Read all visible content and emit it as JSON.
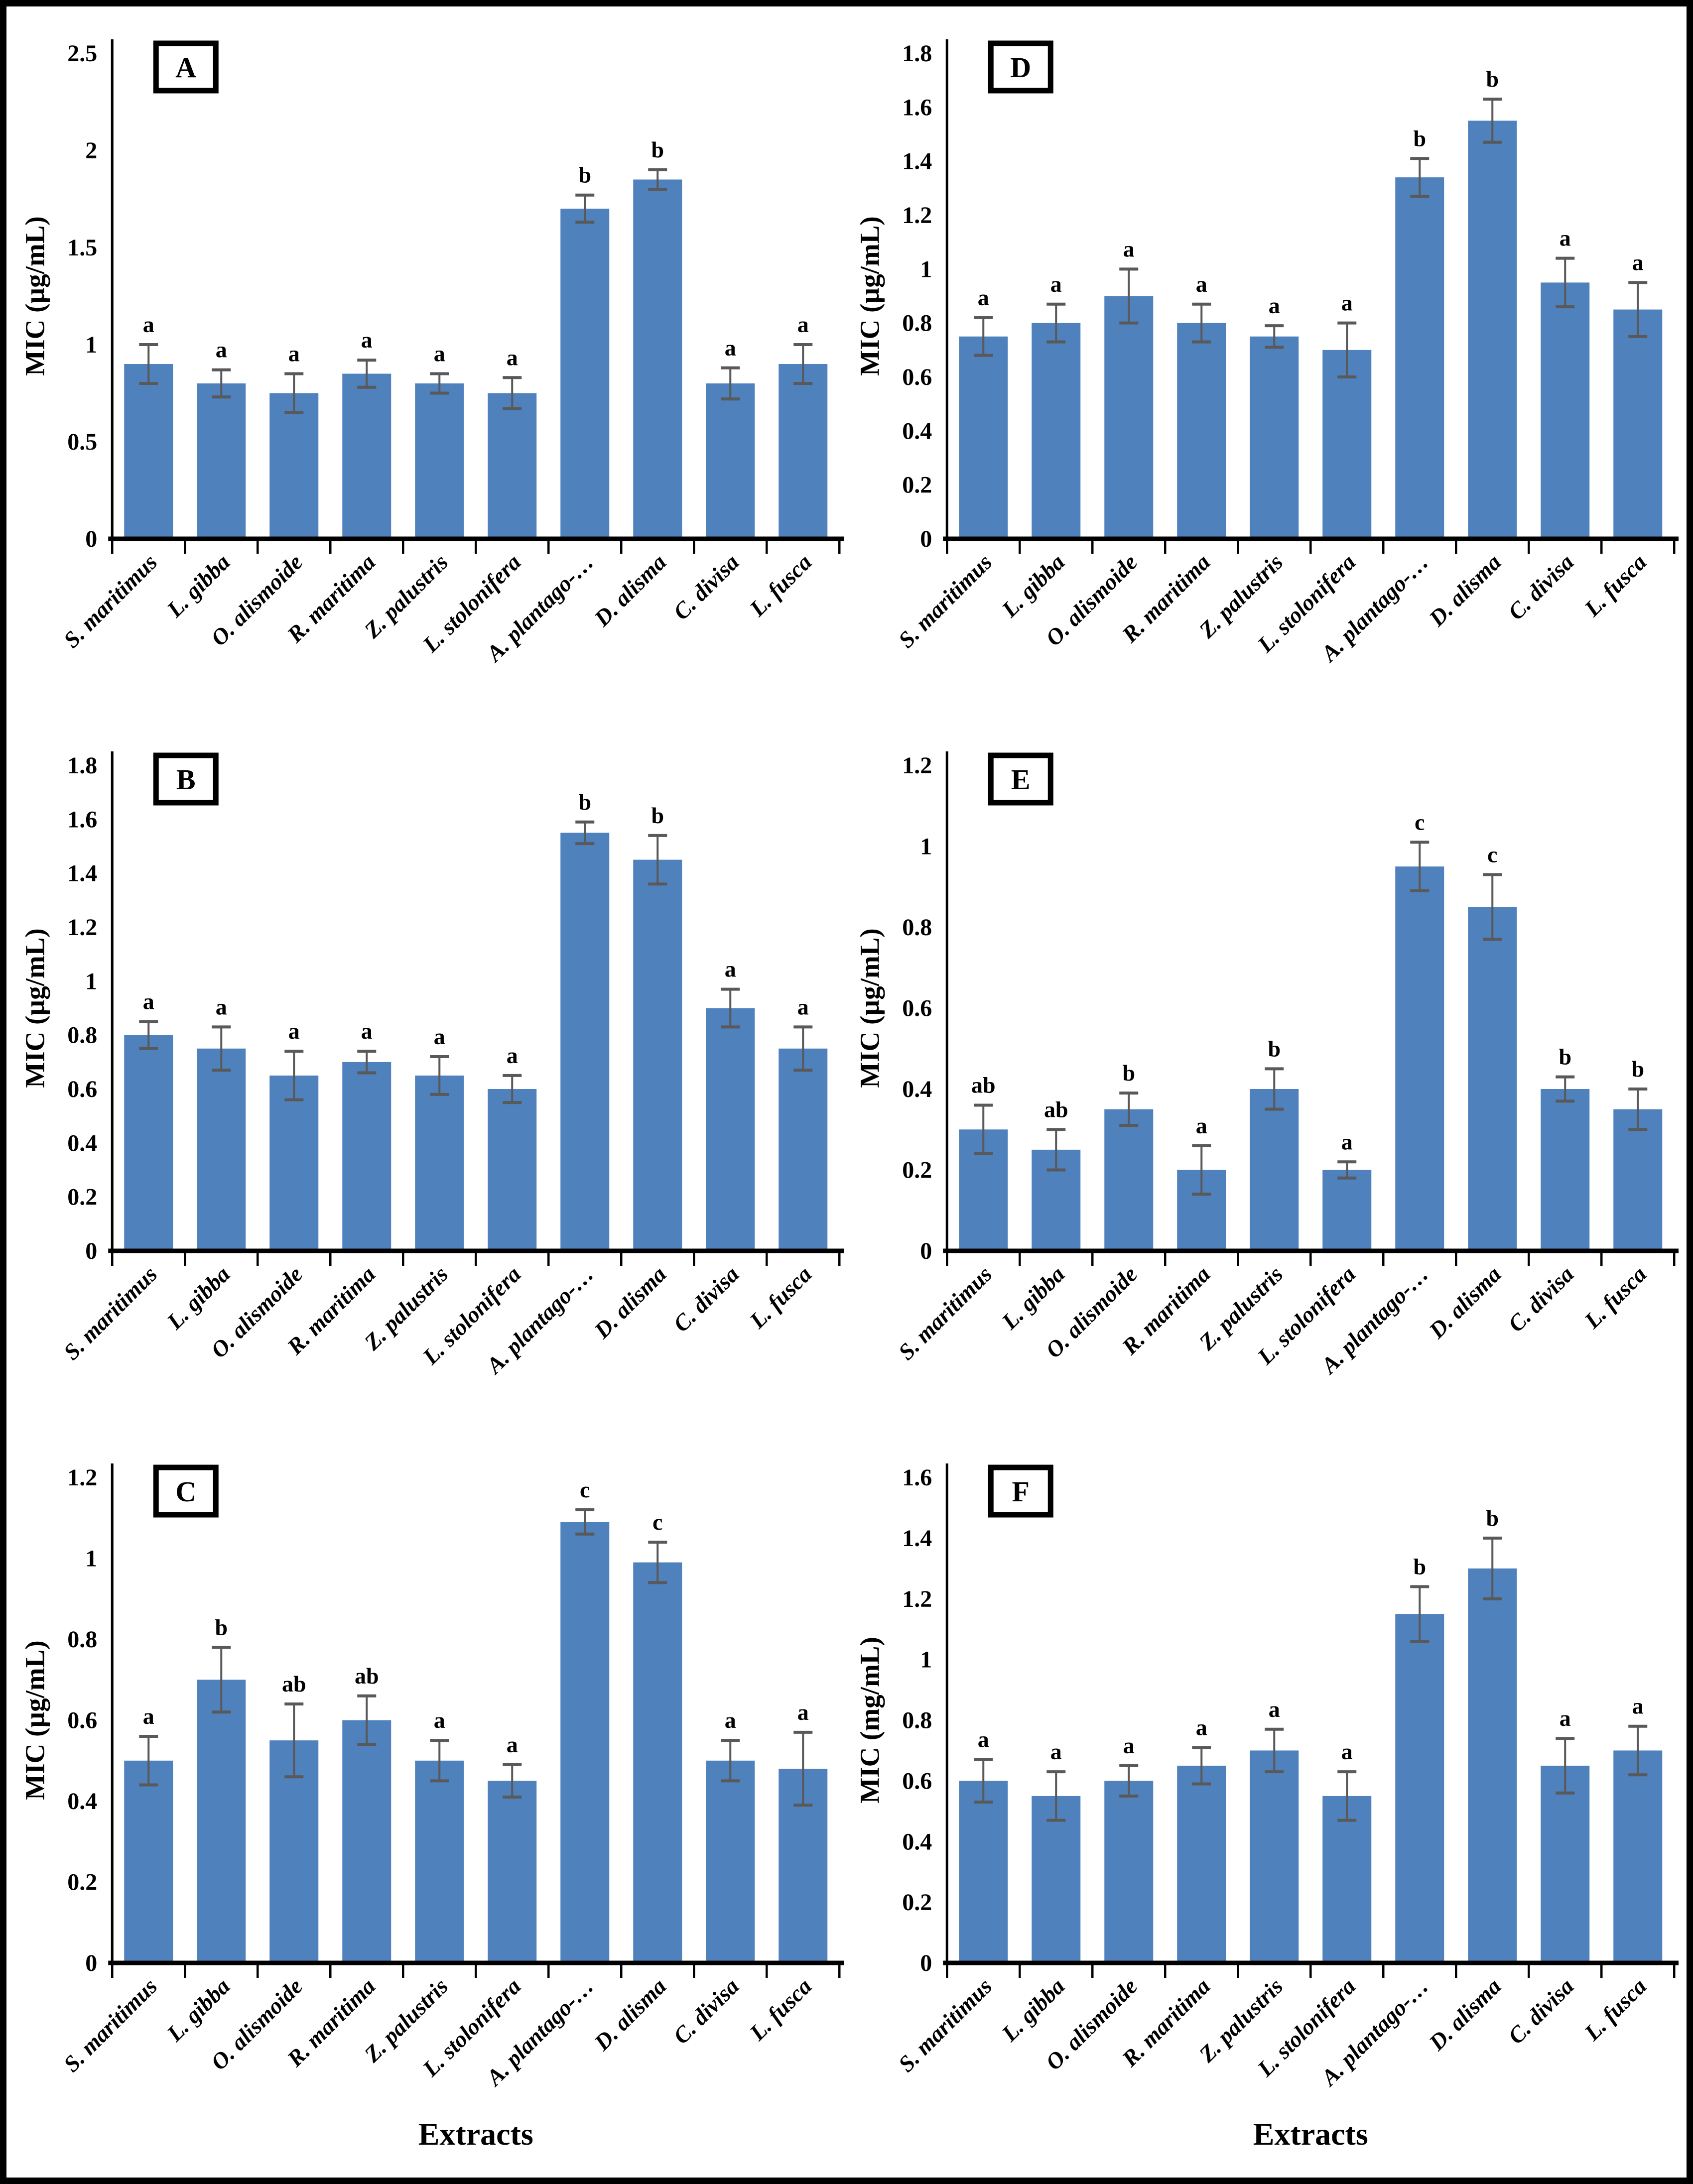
{
  "figure": {
    "bar_color": "#4F81BD",
    "error_color": "#595959",
    "axis_color": "#000000",
    "background": "#ffffff",
    "grid_layout": [
      [
        "A",
        "D"
      ],
      [
        "B",
        "E"
      ],
      [
        "C",
        "F"
      ]
    ],
    "x_axis_title": "Extracts",
    "categories": [
      "S. maritimus",
      "L. gibba",
      "O. alismoide",
      "R. maritima",
      "Z. palustris",
      "L. stolonifera",
      "A. plantago-…",
      "D. alisma",
      "C. divisa",
      "L. fusca"
    ]
  },
  "chart_data": [
    {
      "panel_label": "A",
      "type": "bar",
      "ylabel": "MIC (µg/mL)",
      "xlabel": "",
      "ylim": [
        0,
        2.5
      ],
      "ytick_step": 0.5,
      "grid": false,
      "categories": [
        "S. maritimus",
        "L. gibba",
        "O. alismoide",
        "R. maritima",
        "Z. palustris",
        "L. stolonifera",
        "A. plantago-…",
        "D. alisma",
        "C. divisa",
        "L. fusca"
      ],
      "values": [
        0.9,
        0.8,
        0.75,
        0.85,
        0.8,
        0.75,
        1.7,
        1.85,
        0.8,
        0.9
      ],
      "errors": [
        0.1,
        0.07,
        0.1,
        0.07,
        0.05,
        0.08,
        0.07,
        0.05,
        0.08,
        0.1
      ],
      "sig_letters": [
        "a",
        "a",
        "a",
        "a",
        "a",
        "a",
        "b",
        "b",
        "a",
        "a"
      ]
    },
    {
      "panel_label": "B",
      "type": "bar",
      "ylabel": "MIC (µg/mL)",
      "xlabel": "",
      "ylim": [
        0,
        1.8
      ],
      "ytick_step": 0.2,
      "grid": false,
      "categories": [
        "S. maritimus",
        "L. gibba",
        "O. alismoide",
        "R. maritima",
        "Z. palustris",
        "L. stolonifera",
        "A. plantago-…",
        "D. alisma",
        "C. divisa",
        "L. fusca"
      ],
      "values": [
        0.8,
        0.75,
        0.65,
        0.7,
        0.65,
        0.6,
        1.55,
        1.45,
        0.9,
        0.75
      ],
      "errors": [
        0.05,
        0.08,
        0.09,
        0.04,
        0.07,
        0.05,
        0.04,
        0.09,
        0.07,
        0.08
      ],
      "sig_letters": [
        "a",
        "a",
        "a",
        "a",
        "a",
        "a",
        "b",
        "b",
        "a",
        "a"
      ]
    },
    {
      "panel_label": "C",
      "type": "bar",
      "ylabel": "MIC (µg/mL)",
      "xlabel": "Extracts",
      "ylim": [
        0,
        1.2
      ],
      "ytick_step": 0.2,
      "grid": false,
      "categories": [
        "S. maritimus",
        "L. gibba",
        "O. alismoide",
        "R. maritima",
        "Z. palustris",
        "L. stolonifera",
        "A. plantago-…",
        "D. alisma",
        "C. divisa",
        "L. fusca"
      ],
      "values": [
        0.5,
        0.7,
        0.55,
        0.6,
        0.5,
        0.45,
        1.09,
        0.99,
        0.5,
        0.48
      ],
      "errors": [
        0.06,
        0.08,
        0.09,
        0.06,
        0.05,
        0.04,
        0.03,
        0.05,
        0.05,
        0.09
      ],
      "sig_letters": [
        "a",
        "b",
        "ab",
        "ab",
        "a",
        "a",
        "c",
        "c",
        "a",
        "a"
      ]
    },
    {
      "panel_label": "D",
      "type": "bar",
      "ylabel": "MIC (µg/mL)",
      "xlabel": "",
      "ylim": [
        0,
        1.8
      ],
      "ytick_step": 0.2,
      "grid": false,
      "categories": [
        "S. maritimus",
        "L. gibba",
        "O. alismoide",
        "R. maritima",
        "Z. palustris",
        "L. stolonifera",
        "A. plantago-…",
        "D. alisma",
        "C. divisa",
        "L. fusca"
      ],
      "values": [
        0.75,
        0.8,
        0.9,
        0.8,
        0.75,
        0.7,
        1.34,
        1.55,
        0.95,
        0.85
      ],
      "errors": [
        0.07,
        0.07,
        0.1,
        0.07,
        0.04,
        0.1,
        0.07,
        0.08,
        0.09,
        0.1
      ],
      "sig_letters": [
        "a",
        "a",
        "a",
        "a",
        "a",
        "a",
        "b",
        "b",
        "a",
        "a"
      ]
    },
    {
      "panel_label": "E",
      "type": "bar",
      "ylabel": "MIC (µg/mL)",
      "xlabel": "",
      "ylim": [
        0,
        1.2
      ],
      "ytick_step": 0.2,
      "grid": false,
      "categories": [
        "S. maritimus",
        "L. gibba",
        "O. alismoide",
        "R. maritima",
        "Z. palustris",
        "L. stolonifera",
        "A. plantago-…",
        "D. alisma",
        "C. divisa",
        "L. fusca"
      ],
      "values": [
        0.3,
        0.25,
        0.35,
        0.2,
        0.4,
        0.2,
        0.95,
        0.85,
        0.4,
        0.35
      ],
      "errors": [
        0.06,
        0.05,
        0.04,
        0.06,
        0.05,
        0.02,
        0.06,
        0.08,
        0.03,
        0.05
      ],
      "sig_letters": [
        "ab",
        "ab",
        "b",
        "a",
        "b",
        "a",
        "c",
        "c",
        "b",
        "b"
      ]
    },
    {
      "panel_label": "F",
      "type": "bar",
      "ylabel": "MIC (mg/mL)",
      "xlabel": "Extracts",
      "ylim": [
        0,
        1.6
      ],
      "ytick_step": 0.2,
      "grid": false,
      "categories": [
        "S. maritimus",
        "L. gibba",
        "O. alismoide",
        "R. maritima",
        "Z. palustris",
        "L. stolonifera",
        "A. plantago-…",
        "D. alisma",
        "C. divisa",
        "L. fusca"
      ],
      "values": [
        0.6,
        0.55,
        0.6,
        0.65,
        0.7,
        0.55,
        1.15,
        1.3,
        0.65,
        0.7
      ],
      "errors": [
        0.07,
        0.08,
        0.05,
        0.06,
        0.07,
        0.08,
        0.09,
        0.1,
        0.09,
        0.08
      ],
      "sig_letters": [
        "a",
        "a",
        "a",
        "a",
        "a",
        "a",
        "b",
        "b",
        "a",
        "a"
      ]
    }
  ]
}
